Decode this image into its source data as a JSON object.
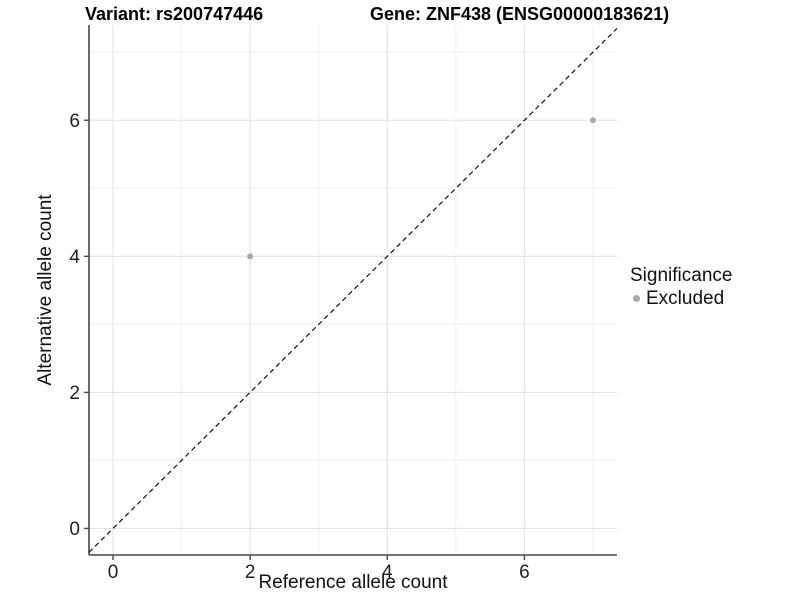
{
  "title": {
    "variant": "Variant: rs200747446",
    "gene": "Gene: ZNF438 (ENSG00000183621)"
  },
  "axes": {
    "x_label": "Reference allele count",
    "y_label": "Alternative allele count"
  },
  "legend": {
    "title": "Significance",
    "items": [
      {
        "label": "Excluded",
        "color": "#a8a8a8"
      }
    ]
  },
  "colors": {
    "background": "#ffffff",
    "grid_major": "#e3e3e3",
    "grid_minor": "#f0f0f0",
    "axis_line": "#474747",
    "tick_text": "#1f1f1f",
    "point": "#a8a8a8",
    "identity_line": "#111111"
  },
  "chart_data": {
    "type": "scatter",
    "title": "Variant: rs200747446   Gene: ZNF438 (ENSG00000183621)",
    "xlabel": "Reference allele count",
    "ylabel": "Alternative allele count",
    "xlim": [
      -0.35,
      7.35
    ],
    "ylim": [
      -0.39,
      7.4
    ],
    "x_ticks": [
      0,
      2,
      4,
      6
    ],
    "y_ticks": [
      0,
      2,
      4,
      6
    ],
    "x_minor_ticks": [
      1,
      3,
      5,
      7
    ],
    "y_minor_ticks": [
      1,
      3,
      5,
      7
    ],
    "grid": true,
    "legend_position": "right",
    "series": [
      {
        "name": "Excluded",
        "color": "#a8a8a8",
        "points": [
          {
            "x": 2,
            "y": 4
          },
          {
            "x": 7,
            "y": 6
          }
        ]
      }
    ],
    "reference_line": {
      "kind": "identity",
      "slope": 1,
      "intercept": 0,
      "style": "dashed"
    }
  }
}
